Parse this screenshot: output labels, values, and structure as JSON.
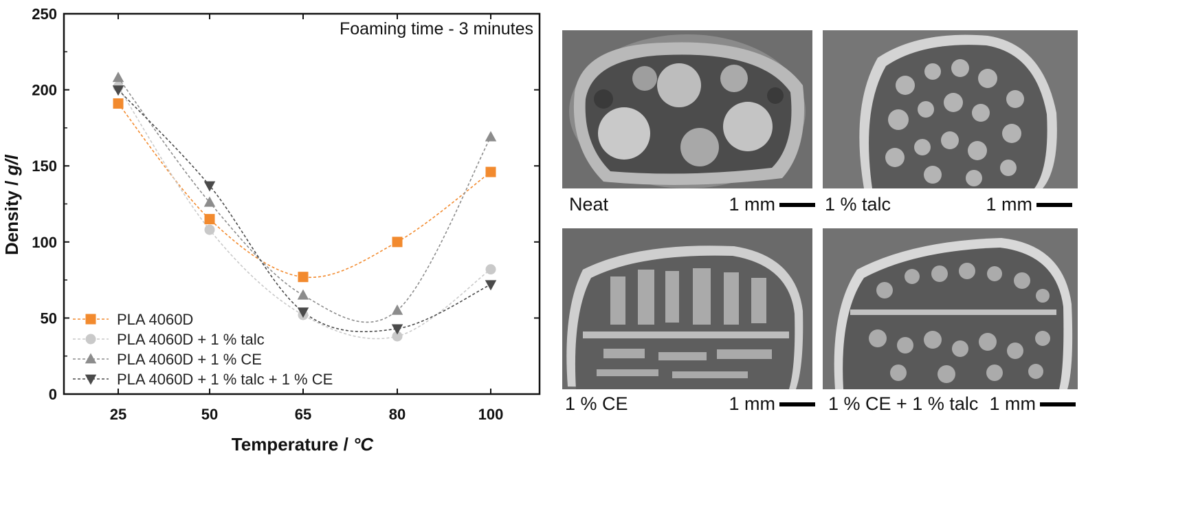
{
  "chart_data": {
    "type": "line",
    "title": "Foaming time - 3 minutes",
    "xlabel_prefix": "Temperature / ",
    "xlabel_unit": "°C",
    "ylabel_prefix": "Density / ",
    "ylabel_unit": "g/l",
    "categories": [
      "25",
      "50",
      "65",
      "80",
      "100"
    ],
    "ylim": [
      0,
      250
    ],
    "yticks": [
      "0",
      "50",
      "100",
      "150",
      "200",
      "250"
    ],
    "legend_position": "bottom-left",
    "series": [
      {
        "name": "PLA 4060D",
        "marker": "square",
        "color": "#f28a2e",
        "values": [
          191,
          115,
          77,
          100,
          146
        ]
      },
      {
        "name": "PLA 4060D + 1 % talc",
        "marker": "circle",
        "color": "#c9c9c9",
        "values": [
          202,
          108,
          52,
          38,
          82
        ]
      },
      {
        "name": "PLA 4060D + 1 % CE",
        "marker": "triangle-up",
        "color": "#8c8c8c",
        "values": [
          208,
          126,
          65,
          55,
          169
        ]
      },
      {
        "name": "PLA 4060D + 1 % talc + 1 % CE",
        "marker": "triangle-down",
        "color": "#4a4a4a",
        "values": [
          200,
          137,
          54,
          43,
          72
        ]
      }
    ]
  },
  "micrographs": [
    {
      "label": "Neat",
      "scale": "1 mm"
    },
    {
      "label": "1 % talc",
      "scale": "1 mm"
    },
    {
      "label": "1 % CE",
      "scale": "1 mm"
    },
    {
      "label": "1 % CE + 1 % talc",
      "scale": "1 mm"
    }
  ]
}
